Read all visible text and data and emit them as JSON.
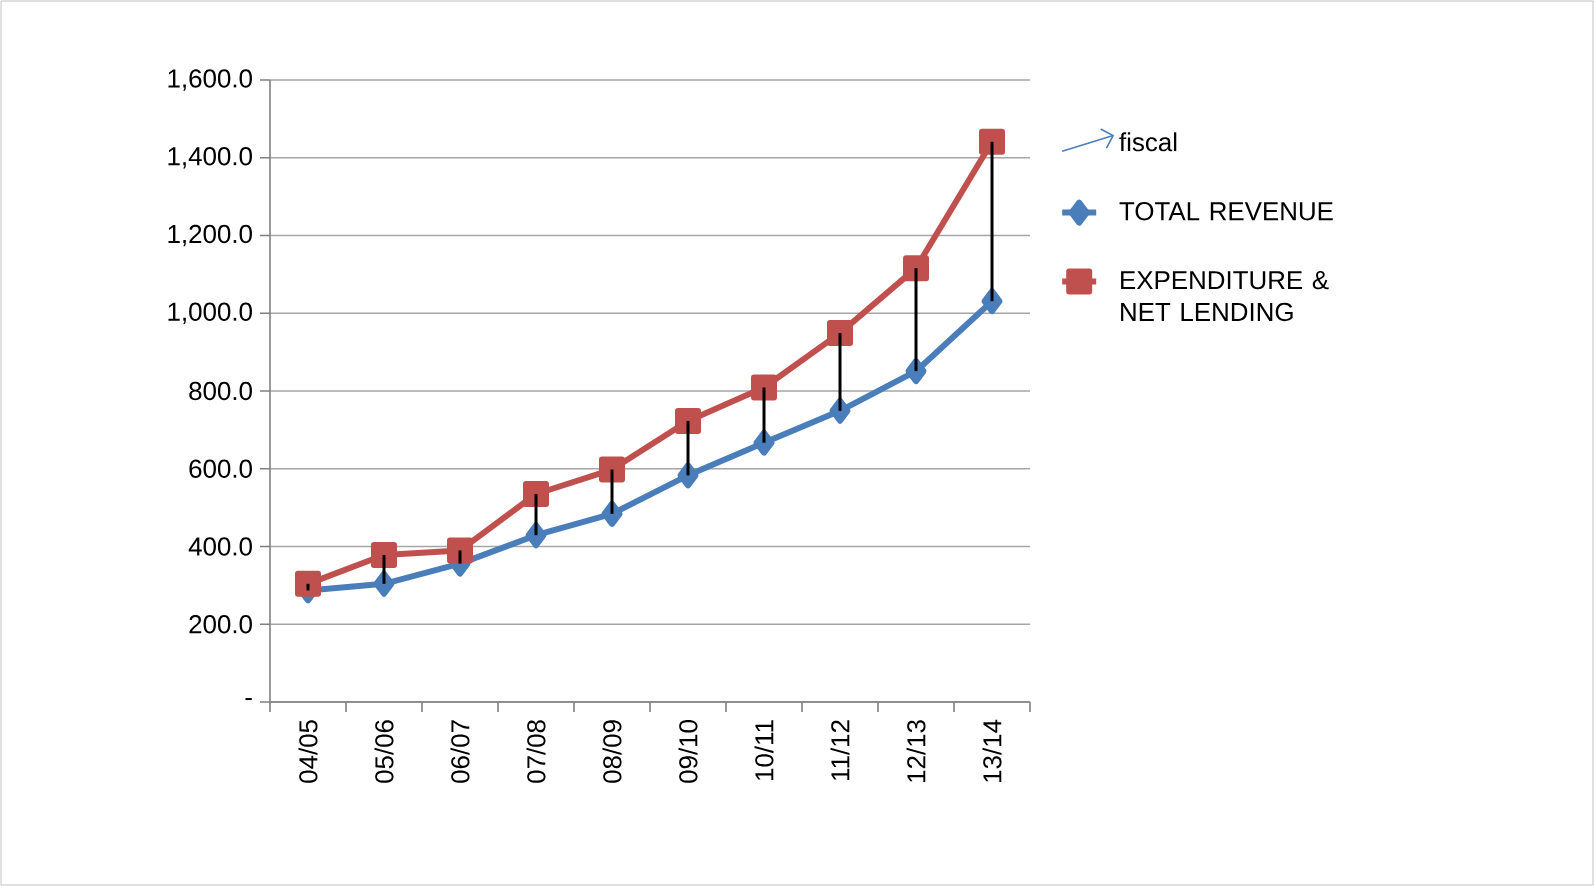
{
  "chart_data": {
    "type": "line",
    "categories": [
      "04/05",
      "05/06",
      "06/07",
      "07/08",
      "08/09",
      "09/10",
      "10/11",
      "11/12",
      "12/13",
      "13/14"
    ],
    "series": [
      {
        "name": "fiscal",
        "color": "#4a7ebb",
        "values": [
          null,
          null,
          null,
          null,
          null,
          null,
          null,
          null,
          null,
          null
        ],
        "marker": "none"
      },
      {
        "name": "TOTAL REVENUE",
        "color": "#4a7ebb",
        "marker": "diamond",
        "values": [
          287,
          304,
          356,
          429,
          484,
          583,
          667,
          749,
          851,
          1031
        ]
      },
      {
        "name": "EXPENDITURE & NET LENDING",
        "color": "#c0504d",
        "marker": "square",
        "values": [
          304,
          378,
          390,
          535,
          598,
          723,
          809,
          949,
          1116,
          1441
        ],
        "errors": [
          [
            287,
            304
          ],
          [
            304,
            378
          ],
          [
            356,
            390
          ],
          [
            429,
            535
          ],
          [
            484,
            598
          ],
          [
            583,
            723
          ],
          [
            667,
            809
          ],
          [
            749,
            949
          ],
          [
            851,
            1116
          ],
          [
            1031,
            1441
          ]
        ]
      }
    ],
    "ylim": [
      0,
      1600
    ],
    "yticks": [
      {
        "value": 0,
        "label": "-"
      },
      {
        "value": 200,
        "label": "200.0"
      },
      {
        "value": 400,
        "label": "400.0"
      },
      {
        "value": 600,
        "label": "600.0"
      },
      {
        "value": 800,
        "label": "800.0"
      },
      {
        "value": 1000,
        "label": "1,000.0"
      },
      {
        "value": 1200,
        "label": "1,200.0"
      },
      {
        "value": 1400,
        "label": "1,400.0"
      },
      {
        "value": 1600,
        "label": "1,600.0"
      }
    ],
    "grid": "y",
    "legend": "right",
    "line_style": "solid"
  }
}
